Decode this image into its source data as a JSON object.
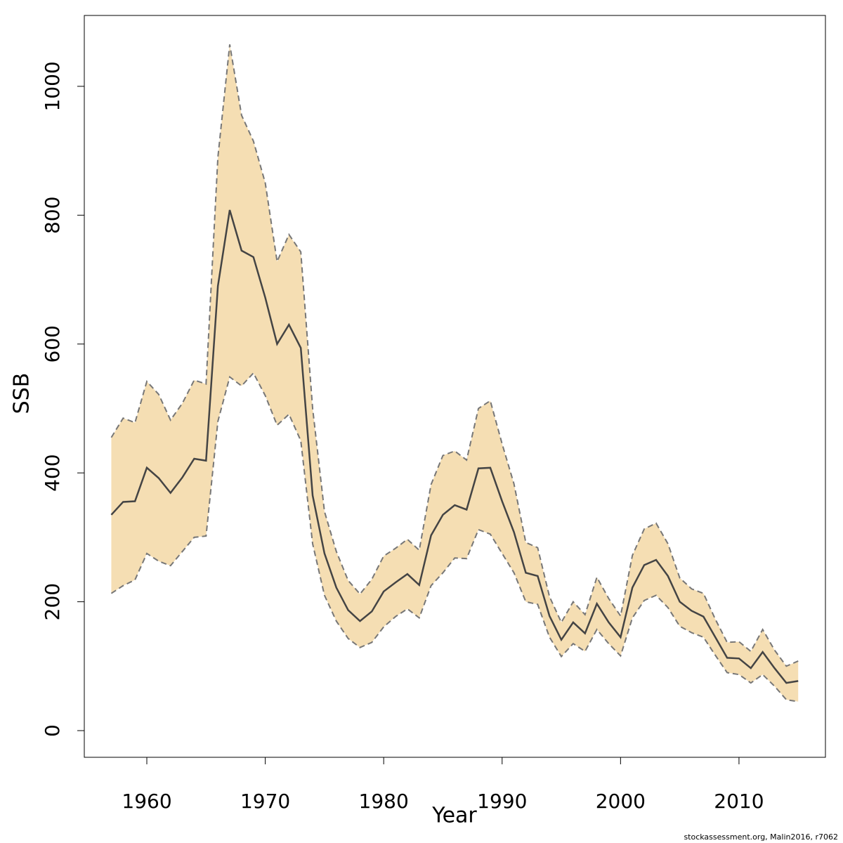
{
  "chart_data": {
    "type": "line-band",
    "xlabel": "Year",
    "ylabel": "SSB",
    "footer": "stockassessment.org, Malin2016, r7062",
    "x": [
      1957,
      1958,
      1959,
      1960,
      1961,
      1962,
      1963,
      1964,
      1965,
      1966,
      1967,
      1968,
      1969,
      1970,
      1971,
      1972,
      1973,
      1974,
      1975,
      1976,
      1977,
      1978,
      1979,
      1980,
      1981,
      1982,
      1983,
      1984,
      1985,
      1986,
      1987,
      1988,
      1989,
      1990,
      1991,
      1992,
      1993,
      1994,
      1995,
      1996,
      1997,
      1998,
      1999,
      2000,
      2001,
      2002,
      2003,
      2004,
      2005,
      2006,
      2007,
      2008,
      2009,
      2010,
      2011,
      2012,
      2013,
      2014,
      2015
    ],
    "values": [
      335,
      355,
      356,
      408,
      392,
      369,
      393,
      422,
      419,
      690,
      808,
      745,
      735,
      672,
      600,
      630,
      594,
      365,
      275,
      222,
      187,
      170,
      185,
      216,
      230,
      243,
      226,
      303,
      335,
      350,
      343,
      407,
      408,
      356,
      308,
      245,
      240,
      178,
      141,
      168,
      151,
      197,
      168,
      145,
      222,
      257,
      265,
      240,
      200,
      186,
      177,
      145,
      113,
      112,
      97,
      122,
      97,
      74,
      77
    ],
    "upper": [
      455,
      485,
      478,
      542,
      522,
      482,
      508,
      544,
      538,
      890,
      1065,
      955,
      915,
      850,
      728,
      770,
      743,
      500,
      340,
      278,
      233,
      212,
      235,
      271,
      283,
      297,
      280,
      382,
      427,
      434,
      420,
      500,
      512,
      445,
      383,
      292,
      284,
      208,
      168,
      200,
      180,
      238,
      205,
      178,
      272,
      313,
      322,
      290,
      237,
      220,
      213,
      173,
      137,
      138,
      123,
      157,
      125,
      100,
      108
    ],
    "lower": [
      213,
      225,
      234,
      275,
      263,
      256,
      278,
      300,
      302,
      480,
      549,
      535,
      555,
      520,
      474,
      491,
      450,
      290,
      210,
      170,
      143,
      129,
      137,
      161,
      177,
      189,
      175,
      225,
      245,
      268,
      267,
      312,
      305,
      275,
      245,
      200,
      196,
      145,
      115,
      135,
      123,
      157,
      135,
      116,
      175,
      202,
      210,
      191,
      162,
      152,
      145,
      117,
      90,
      87,
      74,
      87,
      69,
      48,
      45
    ],
    "color": "#444444",
    "band_color": "#f5deb3",
    "band_edge_color": "#777777",
    "xlim": [
      1954.72,
      2017.3
    ],
    "ylim": [
      -41.4,
      1110
    ],
    "xticks": [
      1960,
      1970,
      1980,
      1990,
      2000,
      2010
    ],
    "yticks": [
      0,
      200,
      400,
      600,
      800,
      1000
    ]
  }
}
